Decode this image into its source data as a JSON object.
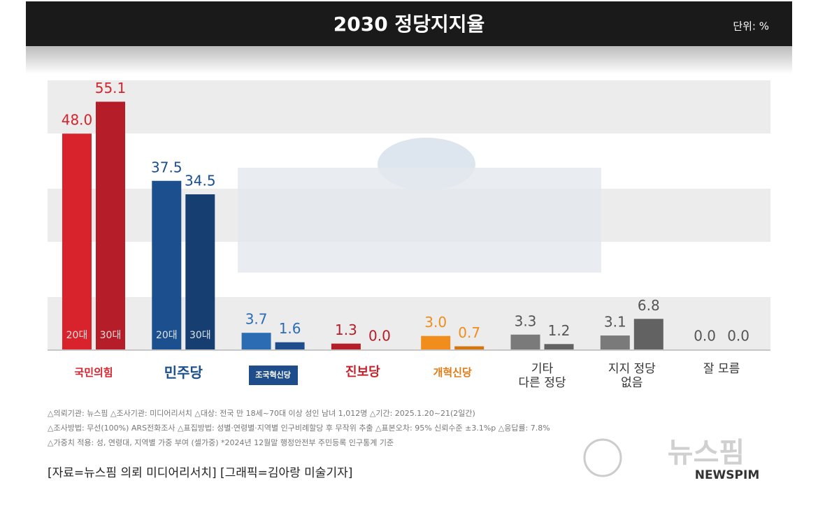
{
  "chart_data": {
    "type": "bar",
    "title": "2030 정당지지율",
    "unit": "단위: %",
    "categories": [
      "국민의힘",
      "민주당",
      "조국혁신당",
      "진보당",
      "개혁신당",
      "기타\n다른 정당",
      "지지 정당\n없음",
      "잘 모름"
    ],
    "series": [
      {
        "name": "20대",
        "colors": [
          "#d8232d",
          "#1b4f8e",
          "#2b6cb3",
          "#b31e29",
          "#f08d1c",
          "#7a7a7a",
          "#7a7a7a",
          "#7a7a7a"
        ],
        "values": [
          48.0,
          37.5,
          3.7,
          1.3,
          3.0,
          3.3,
          3.1,
          0.0
        ],
        "value_labels": [
          "48.0",
          "37.5",
          "3.7",
          "1.3",
          "3.0",
          "3.3",
          "3.1",
          "0.0"
        ]
      },
      {
        "name": "30대",
        "colors": [
          "#b51d28",
          "#163e70",
          "#1f4d8c",
          "#951821",
          "#d47510",
          "#626262",
          "#626262",
          "#626262"
        ],
        "values": [
          55.1,
          34.5,
          1.6,
          0.0,
          0.7,
          1.2,
          6.8,
          0.0
        ],
        "value_labels": [
          "55.1",
          "34.5",
          "1.6",
          "0.0",
          "0.7",
          "1.2",
          "6.8",
          "0.0"
        ]
      }
    ],
    "ylim": [
      0,
      60
    ],
    "footnotes": [
      "△의뢰기관: 뉴스핌 △조사기관: 미디어리서치 △대상: 전국 만 18세~70대 이상 성인 남녀 1,012명 △기간: 2025.1.20~21(2일간)",
      "△조사방법: 무선(100%) ARS전화조사 △표집방법: 성별·연령별·지역별 인구비례할당 후 무작위 추출 △표본오차: 95% 신뢰수준 ±3.1%p △응답률: 7.8%",
      "△가중치 적용: 성, 연령대, 지역별 가중 부여 (셀가중) *2024년 12월말 행정안전부 주민등록 인구통계 기준"
    ],
    "source": "[자료=뉴스핌 의뢰 미디어리서치] [그래픽=김아랑 미술기자]",
    "logo": "뉴스핌",
    "logo_sub": "NEWSPIM"
  }
}
